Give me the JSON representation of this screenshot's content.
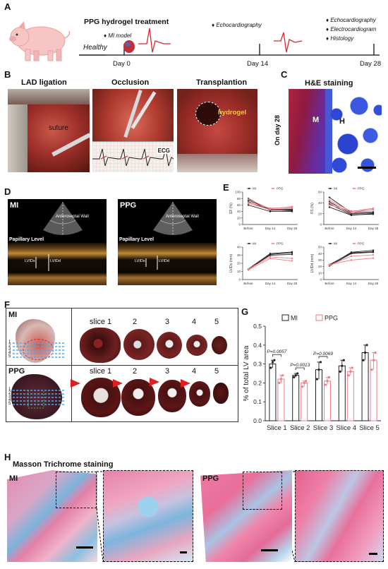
{
  "panels": {
    "A": {
      "letter": "A",
      "title": "PPG hydrogel  treatment",
      "mi_model": "MI model",
      "healthy": "Healthy",
      "days": [
        "Day 0",
        "Day 14",
        "Day 28"
      ],
      "day14_event": "Echocardiography",
      "day28_events": [
        "Echocardiography",
        "Electrocardiogram",
        "Histology"
      ]
    },
    "B": {
      "letter": "B",
      "titles": [
        "LAD ligation",
        "Occlusion",
        "Transplantion"
      ],
      "suture": "suture",
      "ecg": "ECG",
      "hydrogel": "hydrogel"
    },
    "C": {
      "letter": "C",
      "title": "H&E staining",
      "side_label": "On day 28",
      "m_label": "M",
      "h_label": "H"
    },
    "D": {
      "letter": "D",
      "images": [
        {
          "name": "MI",
          "wall": "Anteroseptal Wall",
          "level": "Papillary Level",
          "lvids": "LVIDs",
          "lvidd": "LVIDd"
        },
        {
          "name": "PPG",
          "wall": "Anteroseptal Wall",
          "level": "Papillary Level",
          "lvids": "LVIDs",
          "lvidd": "LVIDd"
        }
      ]
    },
    "E": {
      "letter": "E"
    },
    "F": {
      "letter": "F",
      "rows": [
        {
          "name": "MI",
          "slices": [
            "slice 1",
            "2",
            "3",
            "4",
            "5"
          ],
          "level_numbers": [
            "1",
            "2",
            "3",
            "4",
            "5"
          ]
        },
        {
          "name": "PPG",
          "slices": [
            "slice 1",
            "2",
            "3",
            "4",
            "5"
          ],
          "level_numbers": [
            "1",
            "2",
            "3",
            "4",
            "5"
          ]
        }
      ]
    },
    "G": {
      "letter": "G"
    },
    "H": {
      "letter": "H",
      "title": "Masson Trichrome staining",
      "labels": [
        "MI",
        "PPG"
      ]
    }
  },
  "chart_data": [
    {
      "type": "line",
      "panel": "E",
      "ylabel": "EF (%)",
      "categories": [
        "Before",
        "Day 14",
        "Day 28"
      ],
      "ylim": [
        0,
        100
      ],
      "yticks": [
        0,
        20,
        40,
        60,
        80,
        100
      ],
      "legend": [
        "MI",
        "PPG"
      ],
      "series": [
        {
          "name": "MI",
          "values": [
            80,
            44,
            47
          ]
        },
        {
          "name": "MI",
          "values": [
            75,
            47,
            42
          ]
        },
        {
          "name": "MI",
          "values": [
            70,
            45,
            44
          ]
        },
        {
          "name": "MI",
          "values": [
            60,
            40,
            40
          ]
        },
        {
          "name": "PPG",
          "values": [
            78,
            48,
            55
          ]
        },
        {
          "name": "PPG",
          "values": [
            65,
            46,
            50
          ]
        },
        {
          "name": "PPG",
          "values": [
            68,
            50,
            53
          ]
        }
      ]
    },
    {
      "type": "line",
      "panel": "E",
      "ylabel": "FS (%)",
      "categories": [
        "Before",
        "Day 14",
        "Day 28"
      ],
      "ylim": [
        0,
        60
      ],
      "yticks": [
        0,
        20,
        40,
        60
      ],
      "legend": [
        "MI",
        "PPG"
      ],
      "series": [
        {
          "name": "MI",
          "values": [
            50,
            22,
            23
          ]
        },
        {
          "name": "MI",
          "values": [
            42,
            20,
            21
          ]
        },
        {
          "name": "MI",
          "values": [
            38,
            18,
            19
          ]
        },
        {
          "name": "MI",
          "values": [
            32,
            17,
            20
          ]
        },
        {
          "name": "PPG",
          "values": [
            45,
            24,
            30
          ]
        },
        {
          "name": "PPG",
          "values": [
            40,
            22,
            28
          ]
        },
        {
          "name": "PPG",
          "values": [
            36,
            25,
            27
          ]
        }
      ]
    },
    {
      "type": "line",
      "panel": "E",
      "ylabel": "LVIDs (mm)",
      "categories": [
        "Before",
        "Day 14",
        "Day 28"
      ],
      "ylim": [
        0,
        40
      ],
      "yticks": [
        0,
        10,
        20,
        30,
        40
      ],
      "legend": [
        "MI",
        "PPG"
      ],
      "series": [
        {
          "name": "MI",
          "values": [
            13,
            32,
            34
          ]
        },
        {
          "name": "MI",
          "values": [
            12,
            31,
            33
          ]
        },
        {
          "name": "MI",
          "values": [
            13,
            30,
            31
          ]
        },
        {
          "name": "PPG",
          "values": [
            13,
            28,
            26
          ]
        },
        {
          "name": "PPG",
          "values": [
            12,
            26,
            23
          ]
        }
      ]
    },
    {
      "type": "line",
      "panel": "E",
      "ylabel": "LVIDd (mm)",
      "categories": [
        "Before",
        "Day 14",
        "Day 28"
      ],
      "ylim": [
        0,
        50
      ],
      "yticks": [
        0,
        10,
        20,
        30,
        40,
        50
      ],
      "legend": [
        "MI",
        "PPG"
      ],
      "series": [
        {
          "name": "MI",
          "values": [
            22,
            42,
            45
          ]
        },
        {
          "name": "MI",
          "values": [
            23,
            41,
            43
          ]
        },
        {
          "name": "MI",
          "values": [
            21,
            40,
            42
          ]
        },
        {
          "name": "PPG",
          "values": [
            22,
            36,
            38
          ]
        },
        {
          "name": "PPG",
          "values": [
            23,
            30,
            33
          ]
        }
      ]
    },
    {
      "type": "bar",
      "panel": "G",
      "ylabel": "% of total LV area",
      "categories": [
        "Slice 1",
        "Slice 2",
        "Slice 3",
        "Slice 4",
        "Slice 5"
      ],
      "ylim": [
        0,
        0.5
      ],
      "yticks": [
        "0.0",
        "0.1",
        "0.2",
        "0.3",
        "0.4",
        "0.5"
      ],
      "legend": [
        "MI",
        "PPG"
      ],
      "series": [
        {
          "name": "MI",
          "values": [
            0.3,
            0.24,
            0.27,
            0.29,
            0.36
          ],
          "points": [
            [
              0.28,
              0.31,
              0.32
            ],
            [
              0.23,
              0.24,
              0.25
            ],
            [
              0.22,
              0.27,
              0.31
            ],
            [
              0.26,
              0.29,
              0.32
            ],
            [
              0.32,
              0.36,
              0.4
            ]
          ]
        },
        {
          "name": "PPG",
          "values": [
            0.22,
            0.2,
            0.21,
            0.26,
            0.32
          ],
          "points": [
            [
              0.2,
              0.22,
              0.24
            ],
            [
              0.18,
              0.2,
              0.21
            ],
            [
              0.19,
              0.21,
              0.23
            ],
            [
              0.24,
              0.26,
              0.28
            ],
            [
              0.27,
              0.32,
              0.36
            ]
          ]
        }
      ],
      "annotations": [
        {
          "label": "P=0.0057",
          "category": "Slice 1"
        },
        {
          "label": "P=0.0013",
          "category": "Slice 2"
        },
        {
          "label": "P=0.0069",
          "category": "Slice 3"
        }
      ]
    }
  ],
  "colors": {
    "mi": "#222222",
    "ppg": "#ef7d86",
    "tissue_red": "#a5172d",
    "stain_blue": "#3558d6",
    "masson_pink": "#e27b9e",
    "masson_blue": "#5b9fd6"
  }
}
